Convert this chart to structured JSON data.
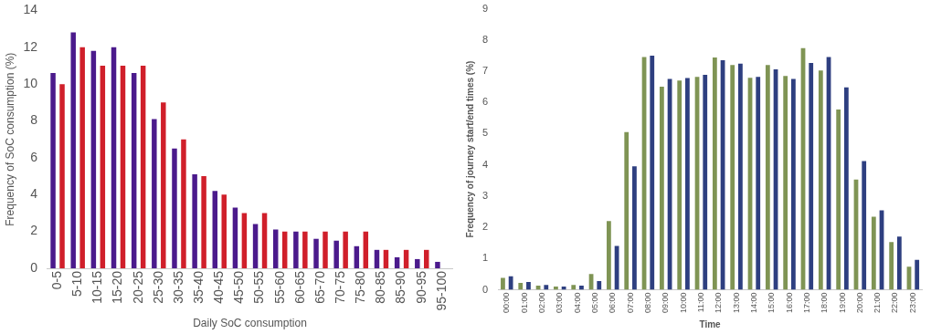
{
  "chart_data": [
    {
      "type": "bar",
      "xlabel": "Daily SoC consumption",
      "ylabel": "Frequency of SoC consumption (%)",
      "categories": [
        "0-5",
        "5-10",
        "10-15",
        "15-20",
        "20-25",
        "25-30",
        "30-35",
        "35-40",
        "40-45",
        "45-50",
        "50-55",
        "55-60",
        "60-65",
        "65-70",
        "70-75",
        "75-80",
        "80-85",
        "85-90",
        "90-95",
        "95-100"
      ],
      "series": [
        {
          "color": "#4b1a8c",
          "values": [
            10.6,
            12.8,
            11.8,
            12.0,
            10.6,
            8.1,
            6.5,
            5.1,
            4.2,
            3.3,
            2.4,
            2.1,
            2.0,
            1.6,
            1.5,
            1.2,
            1.0,
            0.6,
            0.5,
            0.35
          ]
        },
        {
          "color": "#d01f2a",
          "values": [
            10,
            12,
            11,
            11,
            11,
            9,
            7,
            5,
            4,
            3,
            3,
            2,
            2,
            2,
            2,
            2,
            1,
            1,
            1,
            null
          ]
        }
      ],
      "ylim": [
        0,
        14
      ],
      "yticks": [
        0,
        2,
        4,
        6,
        8,
        10,
        12,
        14
      ],
      "grid": false,
      "legend": false
    },
    {
      "type": "bar",
      "xlabel": "Time",
      "ylabel": "Frequency of journey start/end times (%)",
      "categories": [
        "00:00",
        "01:00",
        "02:00",
        "03:00",
        "04:00",
        "05:00",
        "06:00",
        "07:00",
        "08:00",
        "09:00",
        "10:00",
        "11:00",
        "12:00",
        "13:00",
        "14:00",
        "15:00",
        "16:00",
        "17:00",
        "18:00",
        "19:00",
        "20:00",
        "21:00",
        "22:00",
        "23:00"
      ],
      "series": [
        {
          "color": "#7f9454",
          "values": [
            0.38,
            0.22,
            0.13,
            0.1,
            0.15,
            0.5,
            2.2,
            5.05,
            7.45,
            6.5,
            6.7,
            6.82,
            7.44,
            7.2,
            6.79,
            7.2,
            6.85,
            7.74,
            7.02,
            5.77,
            3.53,
            2.34,
            1.53,
            0.74
          ]
        },
        {
          "color": "#2e3f80",
          "values": [
            0.43,
            0.25,
            0.15,
            0.1,
            0.13,
            0.28,
            1.4,
            3.95,
            7.5,
            6.75,
            6.78,
            6.88,
            7.35,
            7.24,
            6.82,
            7.06,
            6.75,
            7.26,
            7.45,
            6.48,
            4.12,
            2.54,
            1.7,
            0.96
          ]
        }
      ],
      "ylim": [
        0,
        9
      ],
      "yticks": [
        0,
        1,
        2,
        3,
        4,
        5,
        6,
        7,
        8,
        9
      ],
      "grid": false,
      "legend": false
    }
  ]
}
